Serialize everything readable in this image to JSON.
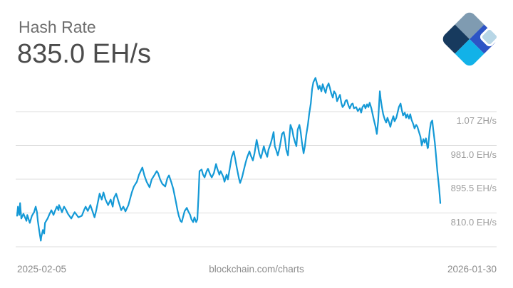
{
  "header": {
    "title": "Hash Rate",
    "current_value": "835.0 EH/s"
  },
  "logo": {
    "name": "blockchain-com-logo",
    "colors": {
      "slate": "#7f9bb1",
      "royal_blue": "#2d54c5",
      "navy": "#173a5e",
      "cyan": "#12b2e8",
      "pale_blue": "#b7d6e6"
    }
  },
  "footer": {
    "x_start_label": "2025-02-05",
    "watermark": "blockchain.com/charts",
    "x_end_label": "2026-01-30"
  },
  "chart_data": {
    "type": "line",
    "title": "Hash Rate",
    "current_value_eh": 835.0,
    "unit": "EH/s",
    "x_range_labels": [
      "2025-02-05",
      "2026-01-30"
    ],
    "legend": "none",
    "grid": "horizontal",
    "line_color": "#1499d6",
    "grid_color": "#dcdcdc",
    "y_axis_side": "right",
    "y_value_range_eh": [
      724.5,
      1169.1
    ],
    "y_ticks": [
      {
        "value": 1066.5,
        "label": "1.07 ZH/s"
      },
      {
        "value": 981.0,
        "label": "981.0 EH/s"
      },
      {
        "value": 895.5,
        "label": "895.5 EH/s"
      },
      {
        "value": 810.0,
        "label": "810.0 EH/s"
      },
      {
        "value": 724.5,
        "label": ""
      }
    ],
    "points": [
      [
        0.0,
        803
      ],
      [
        0.002,
        826
      ],
      [
        0.005,
        805
      ],
      [
        0.007,
        835
      ],
      [
        0.01,
        796
      ],
      [
        0.015,
        808
      ],
      [
        0.022,
        790
      ],
      [
        0.024,
        805
      ],
      [
        0.03,
        785
      ],
      [
        0.035,
        803
      ],
      [
        0.04,
        812
      ],
      [
        0.044,
        826
      ],
      [
        0.047,
        812
      ],
      [
        0.049,
        790
      ],
      [
        0.052,
        767
      ],
      [
        0.056,
        740
      ],
      [
        0.057,
        749
      ],
      [
        0.061,
        767
      ],
      [
        0.064,
        758
      ],
      [
        0.066,
        785
      ],
      [
        0.072,
        796
      ],
      [
        0.077,
        808
      ],
      [
        0.081,
        817
      ],
      [
        0.086,
        805
      ],
      [
        0.089,
        814
      ],
      [
        0.094,
        826
      ],
      [
        0.098,
        817
      ],
      [
        0.099,
        830
      ],
      [
        0.103,
        821
      ],
      [
        0.106,
        812
      ],
      [
        0.111,
        826
      ],
      [
        0.116,
        817
      ],
      [
        0.12,
        808
      ],
      [
        0.128,
        796
      ],
      [
        0.136,
        812
      ],
      [
        0.145,
        799
      ],
      [
        0.153,
        803
      ],
      [
        0.158,
        817
      ],
      [
        0.162,
        826
      ],
      [
        0.167,
        815
      ],
      [
        0.173,
        830
      ],
      [
        0.178,
        815
      ],
      [
        0.183,
        799
      ],
      [
        0.187,
        817
      ],
      [
        0.195,
        859
      ],
      [
        0.2,
        844
      ],
      [
        0.204,
        862
      ],
      [
        0.209,
        844
      ],
      [
        0.215,
        830
      ],
      [
        0.221,
        844
      ],
      [
        0.226,
        826
      ],
      [
        0.229,
        848
      ],
      [
        0.234,
        859
      ],
      [
        0.239,
        841
      ],
      [
        0.246,
        817
      ],
      [
        0.251,
        826
      ],
      [
        0.256,
        814
      ],
      [
        0.263,
        830
      ],
      [
        0.271,
        862
      ],
      [
        0.276,
        877
      ],
      [
        0.283,
        889
      ],
      [
        0.288,
        907
      ],
      [
        0.296,
        925
      ],
      [
        0.301,
        904
      ],
      [
        0.306,
        889
      ],
      [
        0.313,
        875
      ],
      [
        0.318,
        895
      ],
      [
        0.325,
        907
      ],
      [
        0.33,
        916
      ],
      [
        0.333,
        911
      ],
      [
        0.338,
        895
      ],
      [
        0.343,
        884
      ],
      [
        0.35,
        877
      ],
      [
        0.355,
        898
      ],
      [
        0.359,
        905
      ],
      [
        0.364,
        889
      ],
      [
        0.369,
        871
      ],
      [
        0.375,
        839
      ],
      [
        0.379,
        817
      ],
      [
        0.382,
        803
      ],
      [
        0.386,
        790
      ],
      [
        0.389,
        787
      ],
      [
        0.392,
        799
      ],
      [
        0.396,
        815
      ],
      [
        0.401,
        823
      ],
      [
        0.404,
        815
      ],
      [
        0.409,
        805
      ],
      [
        0.412,
        794
      ],
      [
        0.416,
        787
      ],
      [
        0.419,
        799
      ],
      [
        0.423,
        787
      ],
      [
        0.426,
        794
      ],
      [
        0.429,
        860
      ],
      [
        0.431,
        916
      ],
      [
        0.436,
        920
      ],
      [
        0.439,
        908
      ],
      [
        0.443,
        900
      ],
      [
        0.448,
        916
      ],
      [
        0.451,
        922
      ],
      [
        0.456,
        908
      ],
      [
        0.46,
        900
      ],
      [
        0.465,
        911
      ],
      [
        0.47,
        934
      ],
      [
        0.473,
        922
      ],
      [
        0.478,
        907
      ],
      [
        0.481,
        916
      ],
      [
        0.487,
        902
      ],
      [
        0.49,
        889
      ],
      [
        0.495,
        907
      ],
      [
        0.498,
        895
      ],
      [
        0.502,
        920
      ],
      [
        0.507,
        952
      ],
      [
        0.512,
        966
      ],
      [
        0.515,
        949
      ],
      [
        0.519,
        925
      ],
      [
        0.524,
        898
      ],
      [
        0.527,
        886
      ],
      [
        0.532,
        902
      ],
      [
        0.535,
        916
      ],
      [
        0.54,
        938
      ],
      [
        0.544,
        952
      ],
      [
        0.549,
        966
      ],
      [
        0.552,
        956
      ],
      [
        0.557,
        943
      ],
      [
        0.561,
        961
      ],
      [
        0.566,
        995
      ],
      [
        0.569,
        979
      ],
      [
        0.572,
        961
      ],
      [
        0.576,
        949
      ],
      [
        0.579,
        961
      ],
      [
        0.583,
        979
      ],
      [
        0.586,
        966
      ],
      [
        0.591,
        952
      ],
      [
        0.594,
        970
      ],
      [
        0.599,
        985
      ],
      [
        0.603,
        1001
      ],
      [
        0.606,
        1015
      ],
      [
        0.609,
        979
      ],
      [
        0.613,
        967
      ],
      [
        0.616,
        956
      ],
      [
        0.62,
        974
      ],
      [
        0.623,
        992
      ],
      [
        0.626,
        1010
      ],
      [
        0.63,
        1015
      ],
      [
        0.633,
        997
      ],
      [
        0.636,
        970
      ],
      [
        0.64,
        956
      ],
      [
        0.643,
        997
      ],
      [
        0.646,
        1033
      ],
      [
        0.65,
        1021
      ],
      [
        0.653,
        1003
      ],
      [
        0.657,
        988
      ],
      [
        0.66,
        979
      ],
      [
        0.663,
        1021
      ],
      [
        0.667,
        1033
      ],
      [
        0.67,
        1015
      ],
      [
        0.673,
        988
      ],
      [
        0.677,
        961
      ],
      [
        0.68,
        979
      ],
      [
        0.683,
        1006
      ],
      [
        0.687,
        1033
      ],
      [
        0.69,
        1060
      ],
      [
        0.694,
        1087
      ],
      [
        0.697,
        1123
      ],
      [
        0.7,
        1141
      ],
      [
        0.705,
        1152
      ],
      [
        0.709,
        1136
      ],
      [
        0.712,
        1123
      ],
      [
        0.715,
        1132
      ],
      [
        0.719,
        1118
      ],
      [
        0.722,
        1136
      ],
      [
        0.726,
        1123
      ],
      [
        0.729,
        1114
      ],
      [
        0.732,
        1129
      ],
      [
        0.736,
        1138
      ],
      [
        0.739,
        1127
      ],
      [
        0.742,
        1114
      ],
      [
        0.746,
        1102
      ],
      [
        0.749,
        1118
      ],
      [
        0.753,
        1111
      ],
      [
        0.756,
        1093
      ],
      [
        0.759,
        1100
      ],
      [
        0.763,
        1109
      ],
      [
        0.766,
        1089
      ],
      [
        0.769,
        1078
      ],
      [
        0.773,
        1084
      ],
      [
        0.776,
        1094
      ],
      [
        0.779,
        1096
      ],
      [
        0.783,
        1082
      ],
      [
        0.786,
        1075
      ],
      [
        0.79,
        1085
      ],
      [
        0.793,
        1087
      ],
      [
        0.796,
        1075
      ],
      [
        0.801,
        1078
      ],
      [
        0.805,
        1068
      ],
      [
        0.81,
        1075
      ],
      [
        0.813,
        1064
      ],
      [
        0.816,
        1078
      ],
      [
        0.82,
        1084
      ],
      [
        0.823,
        1075
      ],
      [
        0.827,
        1085
      ],
      [
        0.83,
        1078
      ],
      [
        0.833,
        1089
      ],
      [
        0.837,
        1075
      ],
      [
        0.84,
        1060
      ],
      [
        0.843,
        1046
      ],
      [
        0.847,
        1028
      ],
      [
        0.85,
        1010
      ],
      [
        0.853,
        1042
      ],
      [
        0.857,
        1118
      ],
      [
        0.859,
        1100
      ],
      [
        0.862,
        1078
      ],
      [
        0.865,
        1060
      ],
      [
        0.869,
        1046
      ],
      [
        0.872,
        1039
      ],
      [
        0.875,
        1051
      ],
      [
        0.879,
        1039
      ],
      [
        0.882,
        1028
      ],
      [
        0.885,
        1042
      ],
      [
        0.889,
        1055
      ],
      [
        0.892,
        1042
      ],
      [
        0.896,
        1051
      ],
      [
        0.899,
        1064
      ],
      [
        0.902,
        1078
      ],
      [
        0.906,
        1087
      ],
      [
        0.909,
        1071
      ],
      [
        0.912,
        1057
      ],
      [
        0.916,
        1064
      ],
      [
        0.919,
        1051
      ],
      [
        0.922,
        1060
      ],
      [
        0.926,
        1049
      ],
      [
        0.929,
        1060
      ],
      [
        0.932,
        1046
      ],
      [
        0.936,
        1035
      ],
      [
        0.939,
        1024
      ],
      [
        0.943,
        1033
      ],
      [
        0.946,
        1028
      ],
      [
        0.949,
        1017
      ],
      [
        0.953,
        1003
      ],
      [
        0.956,
        981
      ],
      [
        0.96,
        997
      ],
      [
        0.963,
        988
      ],
      [
        0.966,
        999
      ],
      [
        0.97,
        974
      ],
      [
        0.971,
        976
      ],
      [
        0.975,
        1019
      ],
      [
        0.978,
        1039
      ],
      [
        0.981,
        1044
      ],
      [
        0.983,
        1024
      ],
      [
        0.987,
        988
      ],
      [
        0.99,
        952
      ],
      [
        0.993,
        916
      ],
      [
        0.997,
        875
      ],
      [
        1.0,
        835
      ]
    ]
  }
}
